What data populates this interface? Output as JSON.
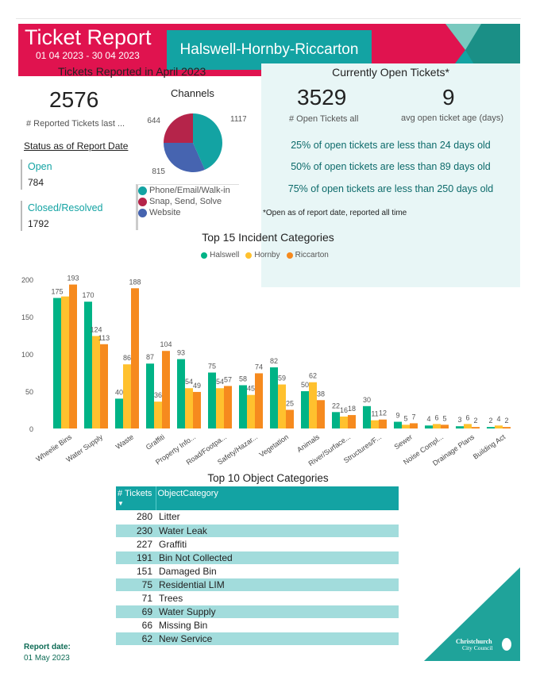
{
  "header": {
    "title": "Ticket Report",
    "date_range": "01 04 2023 - 30 04 2023",
    "region": "Halswell-Hornby-Riccarton",
    "brand_color": "#e0134f",
    "accent_color": "#13a3a3"
  },
  "reported": {
    "heading": "Tickets Reported in April 2023",
    "count": "2576",
    "count_label": "# Reported Tickets last ...",
    "status_heading": "Status as of Report Date",
    "statuses": [
      {
        "label": "Open",
        "value": "784"
      },
      {
        "label": "Closed/Resolved",
        "value": "1792"
      }
    ]
  },
  "channels": {
    "title": "Channels",
    "slices": [
      {
        "name": "Phone/Email/Walk-in",
        "value": 1117,
        "color": "#13a3a3"
      },
      {
        "name": "Website",
        "value": 815,
        "color": "#4664b0"
      },
      {
        "name": "Snap, Send, Solve",
        "value": 644,
        "color": "#b5244a"
      }
    ],
    "legend": [
      {
        "name": "Phone/Email/Walk-in",
        "color": "#13a3a3"
      },
      {
        "name": "Snap, Send, Solve",
        "color": "#b5244a"
      },
      {
        "name": "Website",
        "color": "#4664b0"
      }
    ]
  },
  "open": {
    "heading": "Currently Open Tickets*",
    "count": "3529",
    "count_label": "# Open Tickets all",
    "avg_age": "9",
    "avg_age_label": "avg open ticket age (days)",
    "percentiles": [
      "25% of open tickets are less than 24 days old",
      "50% of open tickets are less than 89 days old",
      "75% of open tickets are less than 250 days old"
    ],
    "footnote": "*Open as of report date, reported all time"
  },
  "chart_data": {
    "type": "bar",
    "title": "Top 15 Incident Categories",
    "ylim": [
      0,
      200
    ],
    "yticks": [
      0,
      50,
      100,
      150,
      200
    ],
    "legend_position": "top",
    "categories": [
      "Wheelie Bins",
      "Water Supply",
      "Waste",
      "Graffiti",
      "Property Info...",
      "Road/Footpa...",
      "Safety/Hazar...",
      "Vegetation",
      "Animals",
      "River/Surface...",
      "Structures/F...",
      "Sewer",
      "Noise Compl...",
      "Drainage Plans",
      "Building Act"
    ],
    "series": [
      {
        "name": "Halswell",
        "color": "#00b386",
        "values": [
          175,
          170,
          40,
          87,
          93,
          75,
          58,
          82,
          50,
          22,
          30,
          9,
          4,
          3,
          2
        ]
      },
      {
        "name": "Hornby",
        "color": "#ffc12e",
        "values": [
          177,
          124,
          86,
          36,
          54,
          54,
          45,
          59,
          62,
          16,
          11,
          5,
          6,
          6,
          4
        ],
        "unlabeled_index": [
          0
        ]
      },
      {
        "name": "Riccarton",
        "color": "#f68a1e",
        "values": [
          193,
          113,
          188,
          104,
          49,
          57,
          74,
          25,
          38,
          18,
          12,
          7,
          5,
          2,
          2
        ]
      }
    ]
  },
  "objects": {
    "title": "Top 10 Object Categories",
    "col_tickets": "# Tickets",
    "col_category": "ObjectCategory",
    "sort_icon": "sort-descending-icon",
    "rows": [
      [
        "280",
        "Litter"
      ],
      [
        "230",
        "Water Leak"
      ],
      [
        "227",
        "Graffiti"
      ],
      [
        "191",
        "Bin Not Collected"
      ],
      [
        "151",
        "Damaged Bin"
      ],
      [
        "75",
        "Residential LIM"
      ],
      [
        "71",
        "Trees"
      ],
      [
        "69",
        "Water Supply"
      ],
      [
        "66",
        "Missing Bin"
      ],
      [
        "62",
        "New Service"
      ]
    ]
  },
  "footer": {
    "report_date_label": "Report date:",
    "report_date": "01 May 2023",
    "logo_text": "Christchurch City Council"
  }
}
